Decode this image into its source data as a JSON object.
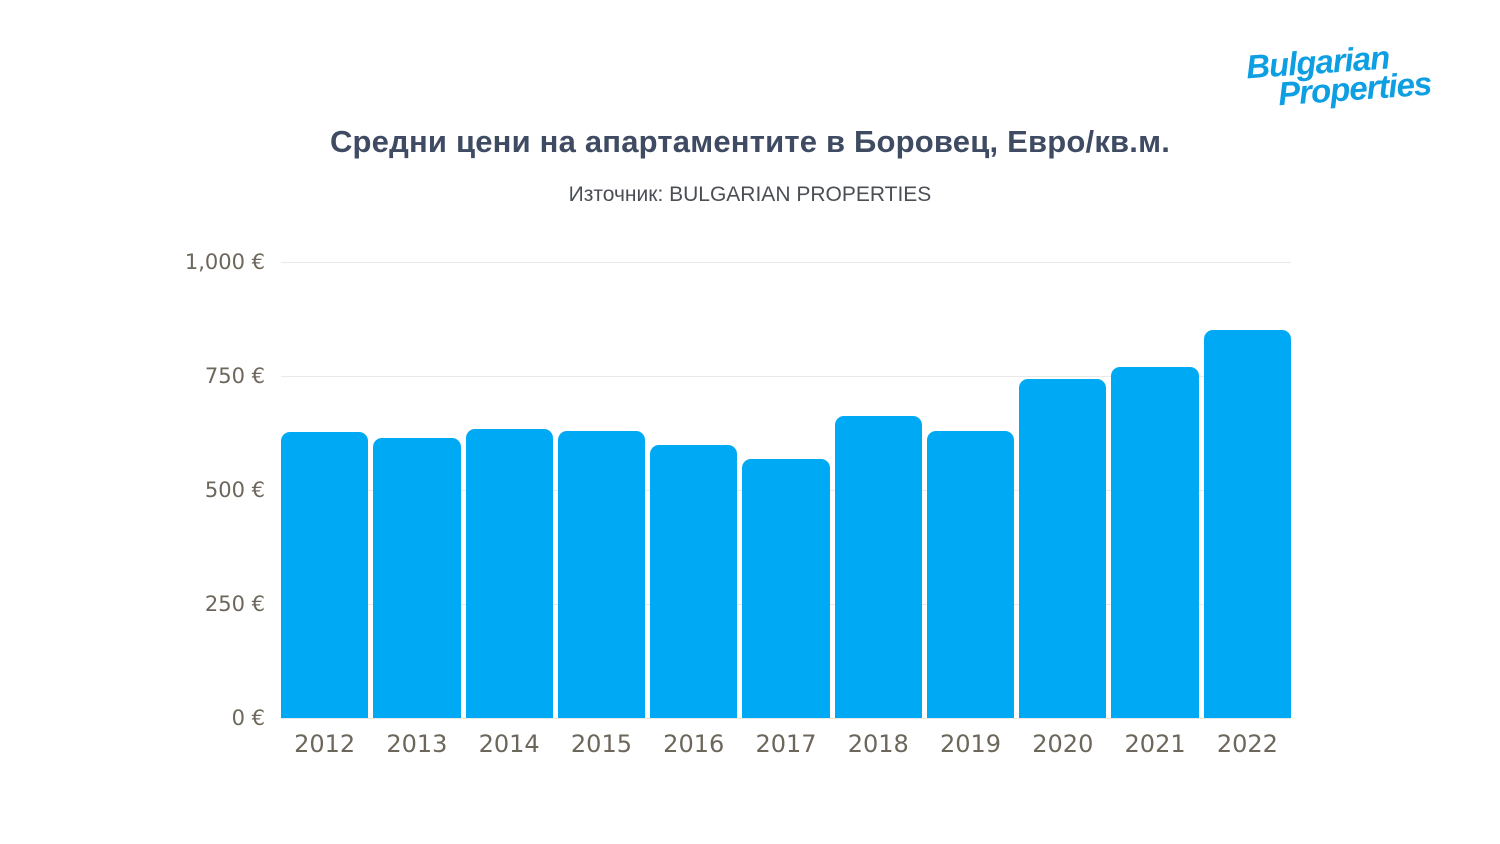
{
  "logo": {
    "line1": "Bulgarian",
    "line2": "Properties",
    "color": "#0d9fe2"
  },
  "header": {
    "title": "Средни цени на апартаментите в Боровец, Евро/кв.м.",
    "subtitle": "Източник: BULGARIAN PROPERTIES"
  },
  "chart_data": {
    "type": "bar",
    "title": "Средни цени на апартаментите в Боровец, Евро/кв.м.",
    "subtitle": "Източник: BULGARIAN PROPERTIES",
    "categories": [
      "2012",
      "2013",
      "2014",
      "2015",
      "2016",
      "2017",
      "2018",
      "2019",
      "2020",
      "2021",
      "2022"
    ],
    "values": [
      627,
      615,
      633,
      629,
      598,
      567,
      663,
      630,
      743,
      770,
      851
    ],
    "unit": "€/кв.м.",
    "xlabel": "",
    "ylabel": "",
    "ylim": [
      0,
      1000
    ],
    "y_ticks": [
      {
        "value": 1000,
        "label": "1,000 €"
      },
      {
        "value": 750,
        "label": "750 €"
      },
      {
        "value": 500,
        "label": "500 €"
      },
      {
        "value": 250,
        "label": "250 €"
      },
      {
        "value": 0,
        "label": "0 €"
      }
    ],
    "grid": "horizontal",
    "legend": "none",
    "bar_color": "#00a9f4",
    "grid_color": "#e9e9e9",
    "tick_label_color": "#6d675b",
    "title_color": "#3e4b63",
    "subtitle_color": "#4b4f55"
  }
}
